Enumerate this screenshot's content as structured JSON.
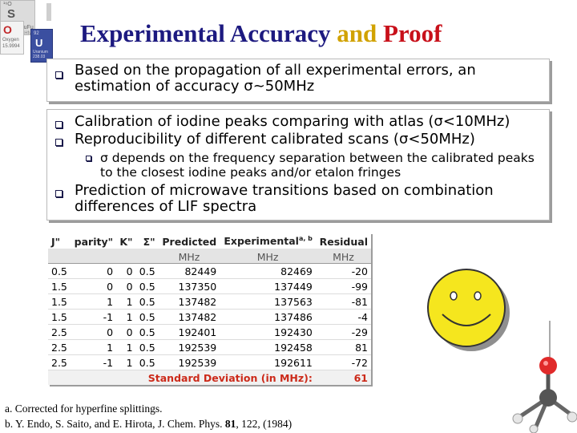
{
  "logo": {
    "cells": [
      "¹⁶O",
      "S",
      "SuFu",
      "T Hfv",
      "O",
      "Oxygen",
      "15.9994",
      "92",
      "U",
      "Uranium",
      "238.03"
    ],
    "accent_red": "#c0282a",
    "accent_blue": "#3b4fa0"
  },
  "title": {
    "part1": "Experimental Accuracy",
    "part2": "and",
    "part3": "Proof",
    "color1": "#1d1a80",
    "color2": "#d1a200",
    "color3": "#c8101a"
  },
  "box1": {
    "text": "Based on the propagation of all experimental errors, an estimation of accuracy σ~50MHz"
  },
  "box2": {
    "item1": "Calibration of iodine peaks comparing with atlas (σ<10MHz)",
    "item2": "Reproducibility of different calibrated scans (σ<50MHz)",
    "subitem": "σ depends on the frequency separation between the calibrated peaks to the closest iodine peaks and/or etalon fringes",
    "item3": "Prediction of microwave transitions based on combination differences of LIF spectra"
  },
  "table": {
    "headers": [
      "J\"",
      "parity\"",
      "K\"",
      "Σ\"",
      "Predicted",
      "Experimental",
      "Residual"
    ],
    "header_sup": "a, b",
    "units": [
      "",
      "",
      "",
      "",
      "MHz",
      "MHz",
      "MHz"
    ],
    "rows": [
      [
        "0.5",
        "0",
        "0",
        "0.5",
        "82449",
        "82469",
        "-20"
      ],
      [
        "1.5",
        "0",
        "0",
        "0.5",
        "137350",
        "137449",
        "-99"
      ],
      [
        "1.5",
        "1",
        "1",
        "0.5",
        "137482",
        "137563",
        "-81"
      ],
      [
        "1.5",
        "-1",
        "1",
        "0.5",
        "137482",
        "137486",
        "-4"
      ],
      [
        "2.5",
        "0",
        "0",
        "0.5",
        "192401",
        "192430",
        "-29"
      ],
      [
        "2.5",
        "1",
        "1",
        "0.5",
        "192539",
        "192458",
        "81"
      ],
      [
        "2.5",
        "-1",
        "1",
        "0.5",
        "192539",
        "192611",
        "-72"
      ]
    ],
    "footer_label": "Standard Deviation (in MHz):",
    "footer_value": "61"
  },
  "refs": {
    "a": "a. Corrected for hyperfine splittings.",
    "b_prefix": "b. Y. Endo, S. Saito, and E. Hirota, J. Chem. Phys. ",
    "b_volume": "81",
    "b_suffix": ", 122, (1984)"
  },
  "decor": {
    "smiley_color": "#f5e61e",
    "molecule_red": "#e02a2a"
  }
}
